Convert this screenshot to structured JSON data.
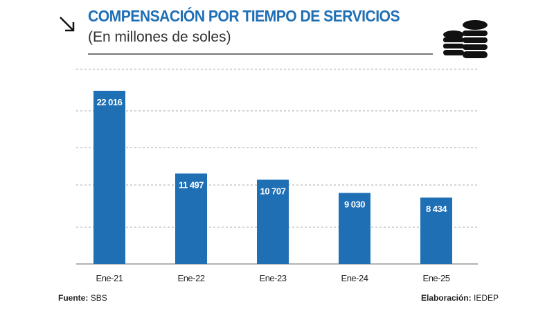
{
  "header": {
    "title": "COMPENSACIÓN POR TIEMPO DE SERVICIOS",
    "subtitle": "(En millones de soles)",
    "icons": [
      "arrow-down-right-icon",
      "coins-stack-icon"
    ]
  },
  "chart_data": {
    "type": "bar",
    "title": "COMPENSACIÓN POR TIEMPO DE SERVICIOS",
    "subtitle": "(En millones de soles)",
    "categories": [
      "Ene-21",
      "Ene-22",
      "Ene-23",
      "Ene-24",
      "Ene-25"
    ],
    "values": [
      22016,
      11497,
      10707,
      9030,
      8434
    ],
    "data_labels": [
      "22 016",
      "11 497",
      "10 707",
      "9 030",
      "8 434"
    ],
    "xlabel": "",
    "ylabel": "",
    "ylim": [
      0,
      25000
    ],
    "grid": true,
    "bar_color": "#1f6fb5",
    "title_color": "#1f6fb5"
  },
  "footer": {
    "source_label": "Fuente:",
    "source_value": "SBS",
    "credit_label": "Elaboración:",
    "credit_value": "IEDEP"
  }
}
